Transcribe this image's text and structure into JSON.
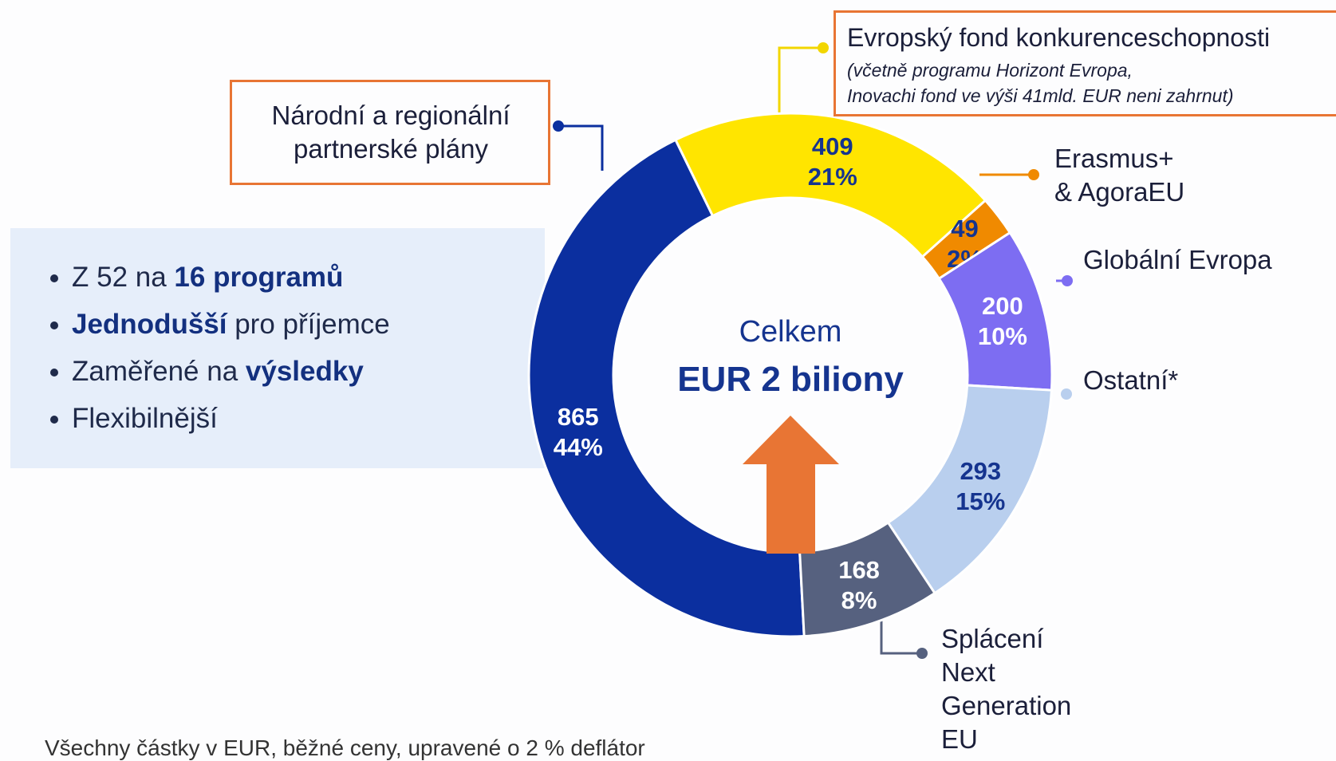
{
  "chart_data": {
    "type": "pie",
    "donut": true,
    "categories": [
      "Národní a regionální partnerské plány",
      "Evropský fond konkurenceschopnosti",
      "Erasmus+ & AgoraEU",
      "Globální Evropa",
      "Ostatní*",
      "Splácení Next Generation EU"
    ],
    "values": [
      865,
      409,
      49,
      200,
      293,
      168
    ],
    "percent_labels": [
      "44%",
      "21%",
      "2%",
      "10%",
      "15%",
      "8%"
    ],
    "colors": [
      "#0b2f9f",
      "#ffe500",
      "#f08a00",
      "#7d6df2",
      "#b9cfee",
      "#56617f"
    ],
    "label_colors": [
      "#ffffff",
      "#15348f",
      "#15348f",
      "#ffffff",
      "#15348f",
      "#ffffff"
    ],
    "annotation_lines": [
      "(včetně programu Horizont Evropa,",
      "Inovachi fond ve výši 41mld. EUR neni zahrnut)"
    ],
    "center_title": "Celkem",
    "center_value": "EUR 2 biliony"
  },
  "bullets": [
    [
      {
        "t": "Z 52 na "
      },
      {
        "b": "16 programů"
      }
    ],
    [
      {
        "b": "Jednodušší"
      },
      {
        "t": " pro příjemce"
      }
    ],
    [
      {
        "t": "Zaměřené na "
      },
      {
        "b": "výsledky"
      }
    ],
    [
      {
        "t": "Flexibilnější"
      }
    ]
  ],
  "footnote": "Všechny částky v EUR, běžné ceny, upravené o 2 % deflátor"
}
